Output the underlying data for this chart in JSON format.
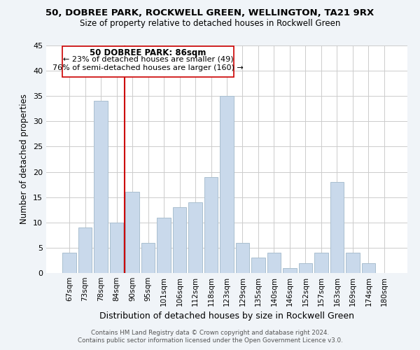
{
  "title": "50, DOBREE PARK, ROCKWELL GREEN, WELLINGTON, TA21 9RX",
  "subtitle": "Size of property relative to detached houses in Rockwell Green",
  "xlabel": "Distribution of detached houses by size in Rockwell Green",
  "ylabel": "Number of detached properties",
  "bar_labels": [
    "67sqm",
    "73sqm",
    "78sqm",
    "84sqm",
    "90sqm",
    "95sqm",
    "101sqm",
    "106sqm",
    "112sqm",
    "118sqm",
    "123sqm",
    "129sqm",
    "135sqm",
    "140sqm",
    "146sqm",
    "152sqm",
    "157sqm",
    "163sqm",
    "169sqm",
    "174sqm",
    "180sqm"
  ],
  "bar_values": [
    4,
    9,
    34,
    10,
    16,
    6,
    11,
    13,
    14,
    19,
    35,
    6,
    3,
    4,
    1,
    2,
    4,
    18,
    4,
    2,
    0
  ],
  "bar_color": "#c9d9eb",
  "bar_edge_color": "#aabfcf",
  "ylim": [
    0,
    45
  ],
  "yticks": [
    0,
    5,
    10,
    15,
    20,
    25,
    30,
    35,
    40,
    45
  ],
  "vline_x": 3.5,
  "vline_color": "#cc0000",
  "annotation_title": "50 DOBREE PARK: 86sqm",
  "annotation_line1": "← 23% of detached houses are smaller (49)",
  "annotation_line2": "76% of semi-detached houses are larger (160) →",
  "annotation_box_color": "#ffffff",
  "annotation_box_edge": "#cc0000",
  "footer1": "Contains HM Land Registry data © Crown copyright and database right 2024.",
  "footer2": "Contains public sector information licensed under the Open Government Licence v3.0.",
  "bg_color": "#f0f4f8",
  "plot_bg_color": "#ffffff",
  "grid_color": "#cccccc"
}
